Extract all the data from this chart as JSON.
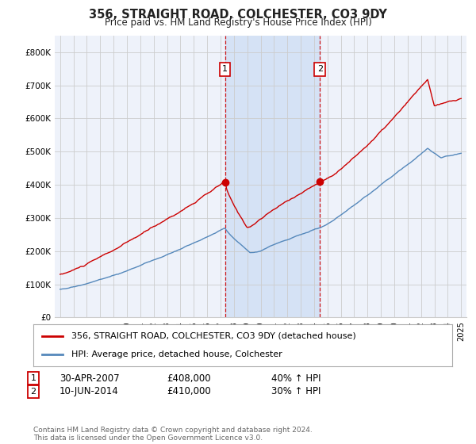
{
  "title": "356, STRAIGHT ROAD, COLCHESTER, CO3 9DY",
  "subtitle": "Price paid vs. HM Land Registry's House Price Index (HPI)",
  "red_label": "356, STRAIGHT ROAD, COLCHESTER, CO3 9DY (detached house)",
  "blue_label": "HPI: Average price, detached house, Colchester",
  "transaction1_date": "30-APR-2007",
  "transaction1_price": "£408,000",
  "transaction1_hpi": "40% ↑ HPI",
  "transaction2_date": "10-JUN-2014",
  "transaction2_price": "£410,000",
  "transaction2_hpi": "30% ↑ HPI",
  "footnote": "Contains HM Land Registry data © Crown copyright and database right 2024.\nThis data is licensed under the Open Government Licence v3.0.",
  "shaded_region_x1": 2007.33,
  "shaded_region_x2": 2014.44,
  "marker1_x": 2007.33,
  "marker1_y": 408000,
  "marker2_x": 2014.44,
  "marker2_y": 410000,
  "ylim": [
    0,
    850000
  ],
  "xlim_start": 1994.6,
  "xlim_end": 2025.4,
  "background_color": "#ffffff",
  "plot_bg_color": "#eef2fa",
  "shaded_color": "#d5e2f5",
  "grid_color": "#cccccc",
  "red_color": "#cc0000",
  "blue_color": "#5588bb",
  "dashed_color": "#cc0000"
}
